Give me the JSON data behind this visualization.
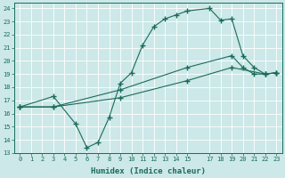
{
  "xlabel": "Humidex (Indice chaleur)",
  "bg_color": "#cce8e8",
  "line_color": "#1a6b5a",
  "xlim": [
    -0.5,
    23.5
  ],
  "ylim": [
    13,
    24.4
  ],
  "xticks": [
    0,
    1,
    2,
    3,
    4,
    5,
    6,
    7,
    8,
    9,
    10,
    11,
    12,
    13,
    14,
    15,
    17,
    18,
    19,
    20,
    21,
    22,
    23
  ],
  "yticks": [
    13,
    14,
    15,
    16,
    17,
    18,
    19,
    20,
    21,
    22,
    23,
    24
  ],
  "curve1_x": [
    0,
    3,
    5,
    6,
    7,
    8,
    9,
    10,
    11,
    12,
    13,
    14,
    15,
    17,
    18,
    19,
    20,
    21,
    22,
    23
  ],
  "curve1_y": [
    16.5,
    17.3,
    15.2,
    13.4,
    13.8,
    15.7,
    18.3,
    19.1,
    21.2,
    22.6,
    23.2,
    23.5,
    23.8,
    24.0,
    23.1,
    23.2,
    20.4,
    19.5,
    19.0,
    19.1
  ],
  "curve2_x": [
    0,
    3,
    9,
    15,
    19,
    20,
    21,
    22,
    23
  ],
  "curve2_y": [
    16.5,
    16.5,
    17.8,
    19.5,
    20.4,
    19.5,
    19.0,
    19.0,
    19.1
  ],
  "curve3_x": [
    0,
    3,
    9,
    15,
    19,
    22,
    23
  ],
  "curve3_y": [
    16.5,
    16.5,
    17.2,
    18.5,
    19.5,
    19.0,
    19.1
  ]
}
